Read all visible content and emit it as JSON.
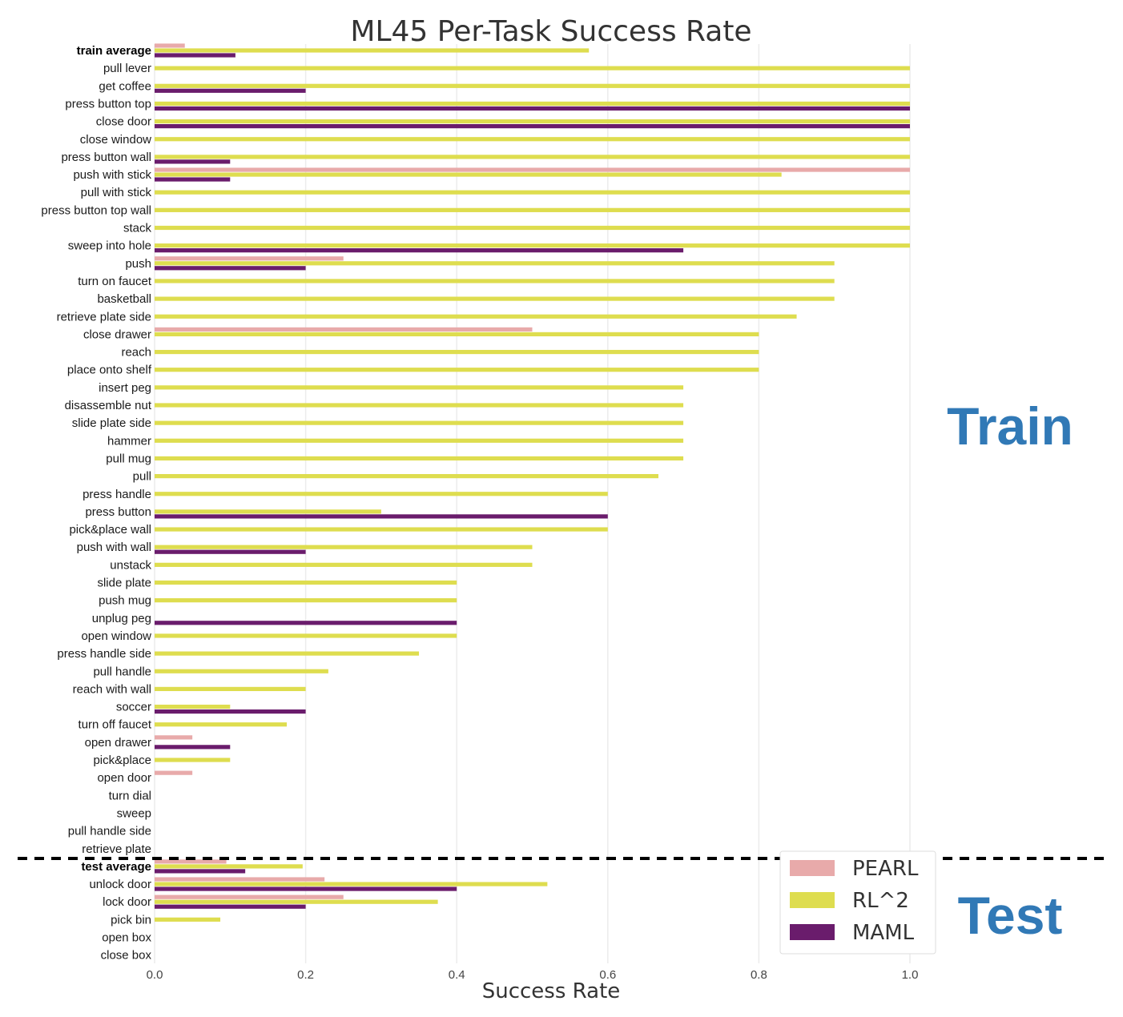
{
  "chart_data": {
    "type": "bar",
    "orientation": "horizontal",
    "title": "ML45 Per-Task Success Rate",
    "xlabel": "Success Rate",
    "ylabel": "",
    "xlim": [
      0,
      1.0
    ],
    "xticks": [
      "0.0",
      "0.2",
      "0.4",
      "0.6",
      "0.8",
      "1.0"
    ],
    "grid": true,
    "legend_position": "bottom-right",
    "series": [
      {
        "name": "PEARL",
        "color": "#e8aaaa"
      },
      {
        "name": "RL^2",
        "color": "#dedd4f"
      },
      {
        "name": "MAML",
        "color": "#6a1c6c"
      }
    ],
    "sections": [
      {
        "label": "Train",
        "color": "#3179b6"
      },
      {
        "label": "Test",
        "color": "#3179b6"
      }
    ],
    "categories": [
      {
        "label": "train average",
        "bold": true,
        "section": "train",
        "PEARL": 0.04,
        "RL^2": 0.575,
        "MAML": 0.107
      },
      {
        "label": "pull lever",
        "section": "train",
        "PEARL": 0,
        "RL^2": 1.0,
        "MAML": 0
      },
      {
        "label": "get coffee",
        "section": "train",
        "PEARL": 0,
        "RL^2": 1.0,
        "MAML": 0.2
      },
      {
        "label": "press button top",
        "section": "train",
        "PEARL": 0,
        "RL^2": 1.0,
        "MAML": 1.0
      },
      {
        "label": "close door",
        "section": "train",
        "PEARL": 0,
        "RL^2": 1.0,
        "MAML": 1.0
      },
      {
        "label": "close window",
        "section": "train",
        "PEARL": 0,
        "RL^2": 1.0,
        "MAML": 0
      },
      {
        "label": "press button wall",
        "section": "train",
        "PEARL": 0,
        "RL^2": 1.0,
        "MAML": 0.1
      },
      {
        "label": "push with stick",
        "section": "train",
        "PEARL": 1.0,
        "RL^2": 0.83,
        "MAML": 0.1
      },
      {
        "label": "pull with stick",
        "section": "train",
        "PEARL": 0,
        "RL^2": 1.0,
        "MAML": 0
      },
      {
        "label": "press button top wall",
        "section": "train",
        "PEARL": 0,
        "RL^2": 1.0,
        "MAML": 0
      },
      {
        "label": "stack",
        "section": "train",
        "PEARL": 0,
        "RL^2": 1.0,
        "MAML": 0
      },
      {
        "label": "sweep into hole",
        "section": "train",
        "PEARL": 0,
        "RL^2": 1.0,
        "MAML": 0.7
      },
      {
        "label": "push",
        "section": "train",
        "PEARL": 0.25,
        "RL^2": 0.9,
        "MAML": 0.2
      },
      {
        "label": "turn on faucet",
        "section": "train",
        "PEARL": 0,
        "RL^2": 0.9,
        "MAML": 0
      },
      {
        "label": "basketball",
        "section": "train",
        "PEARL": 0,
        "RL^2": 0.9,
        "MAML": 0
      },
      {
        "label": "retrieve plate side",
        "section": "train",
        "PEARL": 0,
        "RL^2": 0.85,
        "MAML": 0
      },
      {
        "label": "close drawer",
        "section": "train",
        "PEARL": 0.5,
        "RL^2": 0.8,
        "MAML": 0
      },
      {
        "label": "reach",
        "section": "train",
        "PEARL": 0,
        "RL^2": 0.8,
        "MAML": 0
      },
      {
        "label": "place onto shelf",
        "section": "train",
        "PEARL": 0,
        "RL^2": 0.8,
        "MAML": 0
      },
      {
        "label": "insert peg",
        "section": "train",
        "PEARL": 0,
        "RL^2": 0.7,
        "MAML": 0
      },
      {
        "label": "disassemble nut",
        "section": "train",
        "PEARL": 0,
        "RL^2": 0.7,
        "MAML": 0
      },
      {
        "label": "slide plate side",
        "section": "train",
        "PEARL": 0,
        "RL^2": 0.7,
        "MAML": 0
      },
      {
        "label": "hammer",
        "section": "train",
        "PEARL": 0,
        "RL^2": 0.7,
        "MAML": 0
      },
      {
        "label": "pull mug",
        "section": "train",
        "PEARL": 0,
        "RL^2": 0.7,
        "MAML": 0
      },
      {
        "label": "pull",
        "section": "train",
        "PEARL": 0,
        "RL^2": 0.667,
        "MAML": 0
      },
      {
        "label": "press handle",
        "section": "train",
        "PEARL": 0,
        "RL^2": 0.6,
        "MAML": 0
      },
      {
        "label": "press button",
        "section": "train",
        "PEARL": 0,
        "RL^2": 0.3,
        "MAML": 0.6
      },
      {
        "label": "pick&place wall",
        "section": "train",
        "PEARL": 0,
        "RL^2": 0.6,
        "MAML": 0
      },
      {
        "label": "push with wall",
        "section": "train",
        "PEARL": 0,
        "RL^2": 0.5,
        "MAML": 0.2
      },
      {
        "label": "unstack",
        "section": "train",
        "PEARL": 0,
        "RL^2": 0.5,
        "MAML": 0
      },
      {
        "label": "slide plate",
        "section": "train",
        "PEARL": 0,
        "RL^2": 0.4,
        "MAML": 0
      },
      {
        "label": "push mug",
        "section": "train",
        "PEARL": 0,
        "RL^2": 0.4,
        "MAML": 0
      },
      {
        "label": "unplug peg",
        "section": "train",
        "PEARL": 0,
        "RL^2": 0,
        "MAML": 0.4
      },
      {
        "label": "open window",
        "section": "train",
        "PEARL": 0,
        "RL^2": 0.4,
        "MAML": 0
      },
      {
        "label": "press handle side",
        "section": "train",
        "PEARL": 0,
        "RL^2": 0.35,
        "MAML": 0
      },
      {
        "label": "pull handle",
        "section": "train",
        "PEARL": 0,
        "RL^2": 0.23,
        "MAML": 0
      },
      {
        "label": "reach with wall",
        "section": "train",
        "PEARL": 0,
        "RL^2": 0.2,
        "MAML": 0
      },
      {
        "label": "soccer",
        "section": "train",
        "PEARL": 0,
        "RL^2": 0.1,
        "MAML": 0.2
      },
      {
        "label": "turn off faucet",
        "section": "train",
        "PEARL": 0,
        "RL^2": 0.175,
        "MAML": 0
      },
      {
        "label": "open drawer",
        "section": "train",
        "PEARL": 0.05,
        "RL^2": 0,
        "MAML": 0.1
      },
      {
        "label": "pick&place",
        "section": "train",
        "PEARL": 0,
        "RL^2": 0.1,
        "MAML": 0
      },
      {
        "label": "open door",
        "section": "train",
        "PEARL": 0.05,
        "RL^2": 0,
        "MAML": 0
      },
      {
        "label": "turn dial",
        "section": "train",
        "PEARL": 0,
        "RL^2": 0,
        "MAML": 0
      },
      {
        "label": "sweep",
        "section": "train",
        "PEARL": 0,
        "RL^2": 0,
        "MAML": 0
      },
      {
        "label": "pull handle side",
        "section": "train",
        "PEARL": 0,
        "RL^2": 0,
        "MAML": 0
      },
      {
        "label": "retrieve plate",
        "section": "train",
        "PEARL": 0,
        "RL^2": 0,
        "MAML": 0
      },
      {
        "label": "test average",
        "bold": true,
        "section": "test",
        "PEARL": 0.095,
        "RL^2": 0.196,
        "MAML": 0.12
      },
      {
        "label": "unlock door",
        "section": "test",
        "PEARL": 0.225,
        "RL^2": 0.52,
        "MAML": 0.4
      },
      {
        "label": "lock door",
        "section": "test",
        "PEARL": 0.25,
        "RL^2": 0.375,
        "MAML": 0.2
      },
      {
        "label": "pick bin",
        "section": "test",
        "PEARL": 0,
        "RL^2": 0.087,
        "MAML": 0
      },
      {
        "label": "open box",
        "section": "test",
        "PEARL": 0,
        "RL^2": 0,
        "MAML": 0
      },
      {
        "label": "close box",
        "section": "test",
        "PEARL": 0,
        "RL^2": 0,
        "MAML": 0
      }
    ]
  }
}
